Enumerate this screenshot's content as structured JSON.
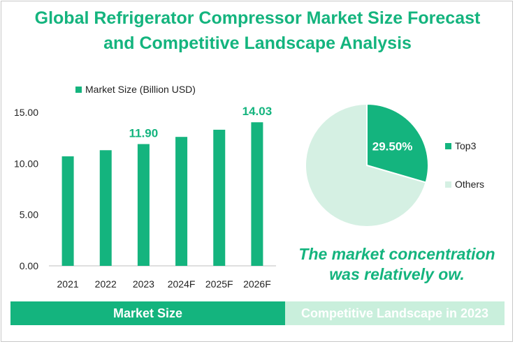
{
  "title": {
    "line1": "Global Refrigerator Compressor Market Size Forecast",
    "line2": "and Competitive Landscape Analysis"
  },
  "conclusion": {
    "line1": "The market concentration",
    "line2": "was relatively ow."
  },
  "bands": {
    "left": "Market Size",
    "right": "Competitive Landscape in 2023"
  },
  "colors": {
    "accent": "#14b47e",
    "light": "#c9efdc",
    "axis_text": "#222222"
  },
  "chart_data": [
    {
      "type": "bar",
      "categories": [
        "2021",
        "2022",
        "2023",
        "2024F",
        "2025F",
        "2026F"
      ],
      "series": [
        {
          "name": "Market Size (Billion USD)",
          "values": [
            10.7,
            11.3,
            11.9,
            12.6,
            13.3,
            14.03
          ]
        }
      ],
      "data_labels": {
        "2023": "11.90",
        "2026F": "14.03"
      },
      "y_ticks": [
        "0.00",
        "5.00",
        "10.00",
        "15.00"
      ],
      "ylim": [
        0,
        15
      ],
      "grid": false,
      "legend_position": "top"
    },
    {
      "type": "pie",
      "labels": [
        "Top3",
        "Others"
      ],
      "values": [
        29.5,
        70.5
      ],
      "data_labels": [
        "29.50%",
        ""
      ],
      "colors": [
        "#14b47e",
        "#d5f0e3"
      ],
      "legend_position": "right"
    }
  ]
}
